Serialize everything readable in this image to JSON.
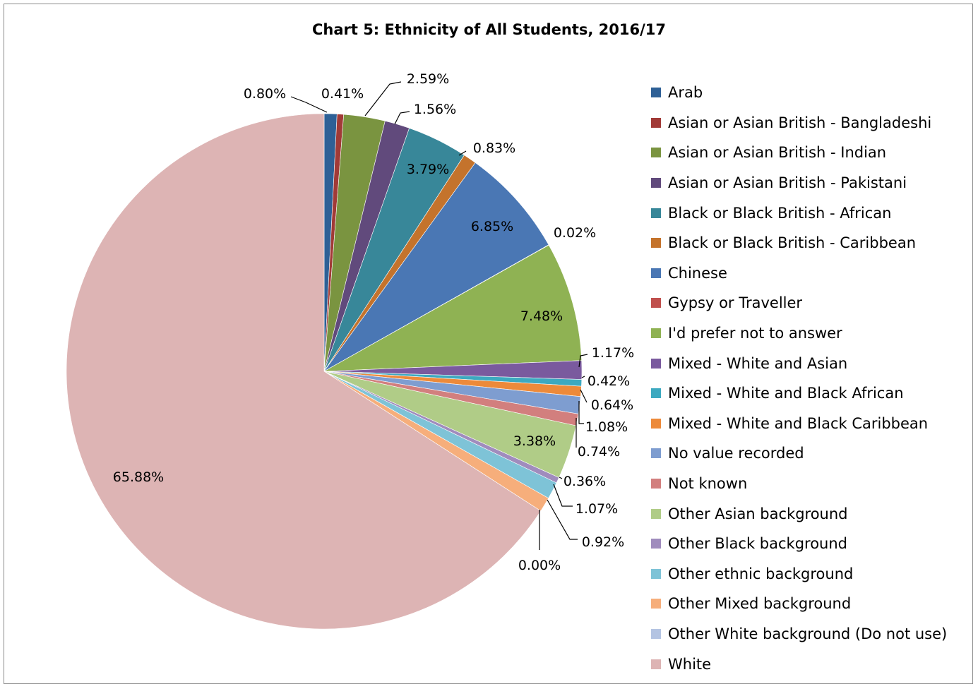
{
  "chart_data": {
    "type": "pie",
    "title": "Chart 5: Ethnicity of All Students, 2016/17",
    "legend_position": "right",
    "slices": [
      {
        "label": "Arab",
        "value": 0.8,
        "display": "0.80%",
        "color": "#2e6096"
      },
      {
        "label": "Asian or Asian British - Bangladeshi",
        "value": 0.41,
        "display": "0.41%",
        "color": "#a13a37"
      },
      {
        "label": "Asian or Asian British - Indian",
        "value": 2.59,
        "display": "2.59%",
        "color": "#7a9440"
      },
      {
        "label": "Asian or Asian British - Pakistani",
        "value": 1.56,
        "display": "1.56%",
        "color": "#614a7c"
      },
      {
        "label": "Black or Black British - African",
        "value": 3.79,
        "display": "3.79%",
        "color": "#388799"
      },
      {
        "label": "Black or Black British - Caribbean",
        "value": 0.83,
        "display": "0.83%",
        "color": "#c4732c"
      },
      {
        "label": "Chinese",
        "value": 6.85,
        "display": "6.85%",
        "color": "#4a77b4"
      },
      {
        "label": "Gypsy or Traveller",
        "value": 0.02,
        "display": "0.02%",
        "color": "#c0504d"
      },
      {
        "label": "I'd prefer not to answer",
        "value": 7.48,
        "display": "7.48%",
        "color": "#8fb253"
      },
      {
        "label": "Mixed - White and Asian",
        "value": 1.17,
        "display": "1.17%",
        "color": "#7a5a9e"
      },
      {
        "label": "Mixed - White and Black African",
        "value": 0.42,
        "display": "0.42%",
        "color": "#3da9c0"
      },
      {
        "label": "Mixed - White and Black Caribbean",
        "value": 0.64,
        "display": "0.64%",
        "color": "#ed8a3a"
      },
      {
        "label": "No value recorded",
        "value": 1.08,
        "display": "1.08%",
        "color": "#7e9dd0"
      },
      {
        "label": "Not known",
        "value": 0.74,
        "display": "0.74%",
        "color": "#d27f7e"
      },
      {
        "label": "Other Asian background",
        "value": 3.38,
        "display": "3.38%",
        "color": "#b0cc87"
      },
      {
        "label": "Other Black background",
        "value": 0.36,
        "display": "0.36%",
        "color": "#a08cbd"
      },
      {
        "label": "Other ethnic background",
        "value": 1.07,
        "display": "1.07%",
        "color": "#7ec3d7"
      },
      {
        "label": "Other Mixed background",
        "value": 0.92,
        "display": "0.92%",
        "color": "#f6ae7b"
      },
      {
        "label": "Other White background (Do not use)",
        "value": 0.0,
        "display": "0.00%",
        "color": "#b4c4e2"
      },
      {
        "label": "White",
        "value": 65.88,
        "display": "65.88%",
        "color": "#ddb4b4"
      }
    ]
  }
}
